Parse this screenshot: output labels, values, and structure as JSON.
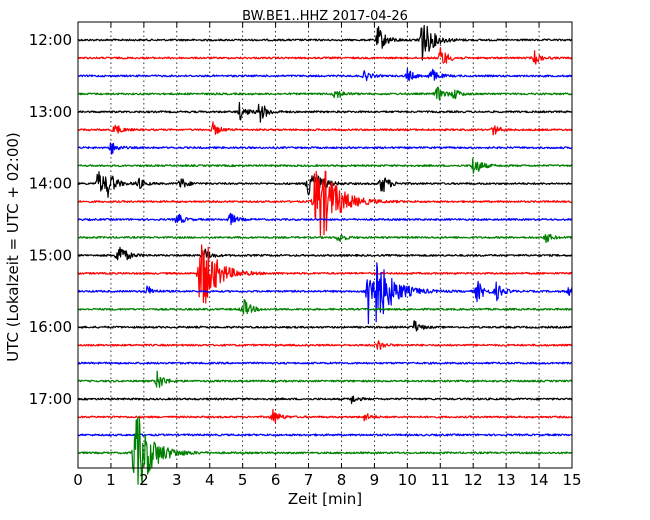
{
  "chart_data": {
    "type": "line",
    "title": "BW.BE1..HHZ 2017-04-26",
    "xlabel": "Zeit  [min]",
    "ylabel": "UTC (Lokalzeit = UTC + 02:00)",
    "xlim": [
      0,
      15
    ],
    "x_ticks": [
      "0",
      "1",
      "2",
      "3",
      "4",
      "5",
      "6",
      "7",
      "8",
      "9",
      "10",
      "11",
      "12",
      "13",
      "14",
      "15"
    ],
    "y_ticks": [
      "12:00",
      "13:00",
      "14:00",
      "15:00",
      "16:00",
      "17:00"
    ],
    "trace_interval_min": 15,
    "grid": "vertical dotted",
    "colors": [
      "#000000",
      "#ff0000",
      "#0000ff",
      "#008000"
    ],
    "traces": [
      {
        "start": "12:00",
        "color": "#000000",
        "events": [
          {
            "t": 9.1,
            "amp": 0.25
          },
          {
            "t": 10.4,
            "amp": 0.45
          }
        ]
      },
      {
        "start": "12:15",
        "color": "#ff0000",
        "events": [
          {
            "t": 11.0,
            "amp": 0.2
          },
          {
            "t": 13.85,
            "amp": 0.12
          }
        ]
      },
      {
        "start": "12:30",
        "color": "#0000ff",
        "events": [
          {
            "t": 8.7,
            "amp": 0.1
          },
          {
            "t": 10.0,
            "amp": 0.12
          },
          {
            "t": 10.7,
            "amp": 0.15
          }
        ]
      },
      {
        "start": "12:45",
        "color": "#008000",
        "events": [
          {
            "t": 7.8,
            "amp": 0.12
          },
          {
            "t": 10.9,
            "amp": 0.15
          },
          {
            "t": 11.4,
            "amp": 0.1
          }
        ]
      },
      {
        "start": "13:00",
        "color": "#000000",
        "events": [
          {
            "t": 4.9,
            "amp": 0.15
          },
          {
            "t": 5.5,
            "amp": 0.2
          }
        ]
      },
      {
        "start": "13:15",
        "color": "#ff0000",
        "events": [
          {
            "t": 1.1,
            "amp": 0.12
          },
          {
            "t": 4.1,
            "amp": 0.12
          },
          {
            "t": 12.6,
            "amp": 0.1
          }
        ]
      },
      {
        "start": "13:30",
        "color": "#0000ff",
        "events": [
          {
            "t": 1.0,
            "amp": 0.12
          }
        ]
      },
      {
        "start": "13:45",
        "color": "#008000",
        "events": [
          {
            "t": 12.0,
            "amp": 0.2
          }
        ]
      },
      {
        "start": "14:00",
        "color": "#000000",
        "events": [
          {
            "t": 0.6,
            "amp": 0.25
          },
          {
            "t": 0.9,
            "amp": 0.2
          },
          {
            "t": 1.8,
            "amp": 0.12
          },
          {
            "t": 3.1,
            "amp": 0.12
          },
          {
            "t": 7.0,
            "amp": 0.4
          },
          {
            "t": 9.2,
            "amp": 0.2
          }
        ]
      },
      {
        "start": "14:15",
        "color": "#ff0000",
        "events": [
          {
            "t": 7.2,
            "amp": 1.0
          }
        ]
      },
      {
        "start": "14:30",
        "color": "#0000ff",
        "events": [
          {
            "t": 3.0,
            "amp": 0.12
          },
          {
            "t": 4.6,
            "amp": 0.12
          }
        ]
      },
      {
        "start": "14:45",
        "color": "#008000",
        "events": [
          {
            "t": 7.9,
            "amp": 0.1
          },
          {
            "t": 14.2,
            "amp": 0.1
          }
        ]
      },
      {
        "start": "15:00",
        "color": "#000000",
        "events": [
          {
            "t": 1.2,
            "amp": 0.25
          },
          {
            "t": 3.8,
            "amp": 0.15
          }
        ]
      },
      {
        "start": "15:15",
        "color": "#ff0000",
        "events": [
          {
            "t": 3.7,
            "amp": 0.8
          }
        ]
      },
      {
        "start": "15:30",
        "color": "#0000ff",
        "events": [
          {
            "t": 2.1,
            "amp": 0.1
          },
          {
            "t": 8.8,
            "amp": 1.0
          },
          {
            "t": 12.1,
            "amp": 0.2
          },
          {
            "t": 12.7,
            "amp": 0.15
          },
          {
            "t": 14.9,
            "amp": 0.1
          }
        ]
      },
      {
        "start": "15:45",
        "color": "#008000",
        "events": [
          {
            "t": 5.0,
            "amp": 0.2
          }
        ]
      },
      {
        "start": "16:00",
        "color": "#000000",
        "events": [
          {
            "t": 10.2,
            "amp": 0.12
          }
        ]
      },
      {
        "start": "16:15",
        "color": "#ff0000",
        "events": [
          {
            "t": 9.1,
            "amp": 0.1
          }
        ]
      },
      {
        "start": "16:30",
        "color": "#0000ff",
        "events": []
      },
      {
        "start": "16:45",
        "color": "#008000",
        "events": [
          {
            "t": 2.4,
            "amp": 0.18
          }
        ]
      },
      {
        "start": "17:00",
        "color": "#000000",
        "events": [
          {
            "t": 8.3,
            "amp": 0.08
          }
        ]
      },
      {
        "start": "17:15",
        "color": "#ff0000",
        "events": [
          {
            "t": 5.9,
            "amp": 0.15
          },
          {
            "t": 8.7,
            "amp": 0.08
          }
        ]
      },
      {
        "start": "17:30",
        "color": "#0000ff",
        "events": []
      },
      {
        "start": "17:45",
        "color": "#008000",
        "events": [
          {
            "t": 1.7,
            "amp": 0.9
          }
        ]
      }
    ]
  }
}
